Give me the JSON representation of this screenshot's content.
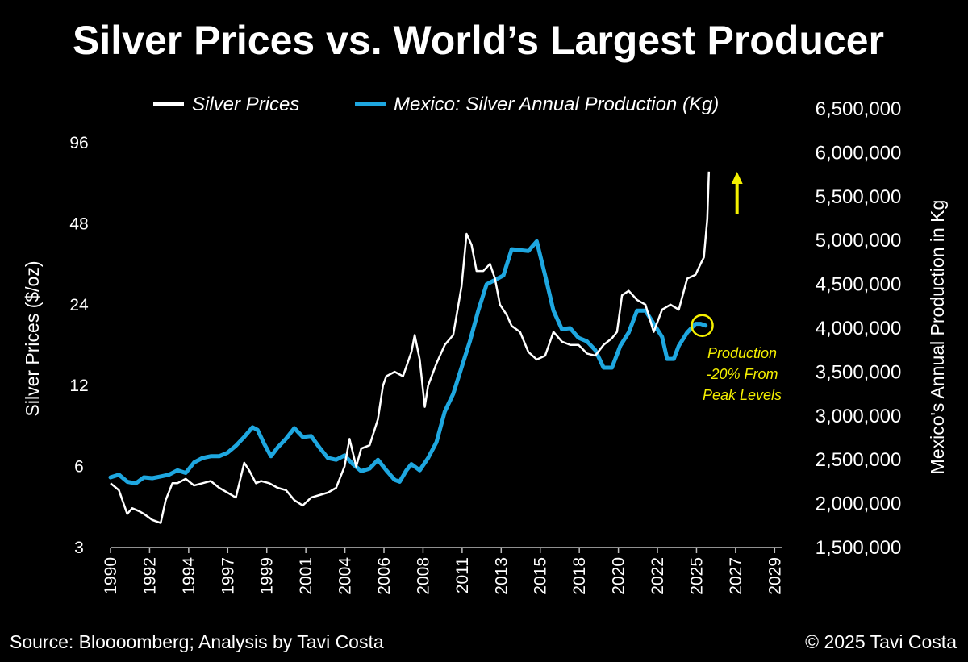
{
  "chart_data": {
    "type": "line",
    "title": "Silver Prices vs. World’s Largest Producer",
    "ylabel_left": "Silver Prices ($/oz)",
    "ylabel_right": "Mexico's Annual Production in Kg",
    "left_axis": {
      "scale": "log",
      "ylim": [
        3,
        96
      ],
      "ticks": [
        "96",
        "48",
        "24",
        "12",
        "6",
        "3"
      ],
      "tick_values": [
        96,
        48,
        24,
        12,
        6,
        3
      ]
    },
    "right_axis": {
      "scale": "linear",
      "ylim": [
        1500000,
        6500000
      ],
      "ticks": [
        "6,500,000",
        "6,000,000",
        "5,500,000",
        "5,000,000",
        "4,500,000",
        "4,000,000",
        "3,500,000",
        "3,000,000",
        "2,500,000",
        "2,000,000",
        "1,500,000"
      ],
      "tick_values": [
        6500000,
        6000000,
        5500000,
        5000000,
        4500000,
        4000000,
        3500000,
        3000000,
        2500000,
        2000000,
        1500000
      ]
    },
    "x_axis": {
      "xlim": [
        1990,
        2030.2
      ],
      "tick_labels": [
        "1990",
        "1992",
        "1994",
        "1997",
        "1999",
        "2001",
        "2004",
        "2006",
        "2008",
        "2011",
        "2013",
        "2015",
        "2018",
        "2020",
        "2022",
        "2025",
        "2027",
        "2029"
      ]
    },
    "legend_position": "top",
    "series": [
      {
        "name": "Silver Prices",
        "axis": "left",
        "color": "#ffffff",
        "x": [
          1990.0,
          1990.5,
          1991.0,
          1991.3,
          1991.7,
          1992.0,
          1992.5,
          1993.0,
          1993.3,
          1993.7,
          1994.0,
          1994.5,
          1995.0,
          1995.5,
          1996.0,
          1996.5,
          1997.0,
          1997.5,
          1998.0,
          1998.3,
          1998.7,
          1999.0,
          1999.5,
          2000.0,
          2000.5,
          2001.0,
          2001.5,
          2002.0,
          2002.5,
          2003.0,
          2003.5,
          2004.0,
          2004.3,
          2004.7,
          2005.0,
          2005.5,
          2006.0,
          2006.3,
          2006.5,
          2007.0,
          2007.5,
          2008.0,
          2008.2,
          2008.5,
          2008.8,
          2009.0,
          2009.5,
          2010.0,
          2010.5,
          2011.0,
          2011.3,
          2011.6,
          2011.9,
          2012.3,
          2012.7,
          2013.0,
          2013.3,
          2013.7,
          2014.0,
          2014.5,
          2015.0,
          2015.5,
          2016.0,
          2016.5,
          2017.0,
          2017.5,
          2018.0,
          2018.5,
          2019.0,
          2019.5,
          2020.0,
          2020.3,
          2020.6,
          2021.0,
          2021.5,
          2022.0,
          2022.5,
          2023.0,
          2023.5,
          2024.0,
          2024.5,
          2025.0,
          2025.3,
          2025.5,
          2025.7,
          2025.8
        ],
        "y": [
          5.2,
          4.9,
          4.0,
          4.2,
          4.1,
          4.0,
          3.8,
          3.7,
          4.5,
          5.2,
          5.2,
          5.4,
          5.1,
          5.2,
          5.3,
          5.0,
          4.8,
          4.6,
          6.2,
          5.8,
          5.2,
          5.3,
          5.2,
          5.0,
          4.9,
          4.5,
          4.3,
          4.6,
          4.7,
          4.8,
          5.0,
          6.0,
          7.6,
          6.0,
          7.0,
          7.2,
          9.0,
          12.0,
          13.0,
          13.5,
          13.0,
          16.0,
          18.5,
          15.0,
          10.0,
          12.0,
          14.5,
          17.0,
          18.5,
          28.0,
          44.0,
          40.0,
          32.0,
          32.0,
          34.0,
          30.0,
          24.0,
          22.0,
          20.0,
          19.0,
          16.0,
          15.0,
          15.5,
          19.0,
          17.5,
          17.0,
          17.0,
          15.8,
          15.5,
          17.0,
          18.0,
          19.0,
          26.0,
          27.0,
          25.0,
          24.0,
          19.0,
          23.0,
          24.0,
          23.0,
          30.0,
          31.0,
          34.0,
          36.0,
          50.0,
          75.0
        ]
      },
      {
        "name": "Mexico: Silver Annual Production (Kg)",
        "axis": "right",
        "color": "#1ea7e0",
        "x": [
          1990.0,
          1990.5,
          1991.0,
          1991.5,
          1992.0,
          1992.5,
          1993.0,
          1993.5,
          1994.0,
          1994.5,
          1995.0,
          1995.5,
          1996.0,
          1996.5,
          1997.0,
          1997.5,
          1998.0,
          1998.5,
          1998.8,
          1999.2,
          1999.6,
          2000.0,
          2000.5,
          2001.0,
          2001.5,
          2002.0,
          2002.5,
          2003.0,
          2003.5,
          2004.0,
          2004.5,
          2005.0,
          2005.5,
          2006.0,
          2006.5,
          2007.0,
          2007.3,
          2007.7,
          2008.0,
          2008.5,
          2009.0,
          2009.5,
          2010.0,
          2010.5,
          2011.0,
          2011.5,
          2012.0,
          2012.5,
          2013.0,
          2013.5,
          2014.0,
          2014.5,
          2015.0,
          2015.5,
          2016.0,
          2016.5,
          2017.0,
          2017.5,
          2018.0,
          2018.5,
          2019.0,
          2019.5,
          2020.0,
          2020.5,
          2021.0,
          2021.5,
          2022.0,
          2022.5,
          2023.0,
          2023.3,
          2023.7,
          2024.0,
          2024.5,
          2025.0,
          2025.3,
          2025.6
        ],
        "y": [
          2300000,
          2330000,
          2250000,
          2230000,
          2300000,
          2290000,
          2310000,
          2330000,
          2380000,
          2350000,
          2470000,
          2520000,
          2540000,
          2540000,
          2580000,
          2660000,
          2760000,
          2870000,
          2840000,
          2680000,
          2540000,
          2640000,
          2740000,
          2860000,
          2760000,
          2770000,
          2640000,
          2520000,
          2500000,
          2550000,
          2450000,
          2370000,
          2400000,
          2500000,
          2380000,
          2270000,
          2250000,
          2380000,
          2450000,
          2380000,
          2520000,
          2700000,
          3050000,
          3250000,
          3550000,
          3850000,
          4200000,
          4500000,
          4550000,
          4600000,
          4900000,
          4890000,
          4880000,
          4990000,
          4600000,
          4200000,
          3990000,
          4000000,
          3890000,
          3850000,
          3750000,
          3550000,
          3550000,
          3800000,
          3950000,
          4200000,
          4200000,
          4050000,
          3900000,
          3650000,
          3650000,
          3800000,
          3950000,
          4050000,
          4050000,
          4030000
        ]
      }
    ],
    "annotations": [
      {
        "text_lines": [
          "Production",
          "-20% From",
          "Peak Levels"
        ],
        "color": "#f5f000",
        "target": {
          "x": 2025.4,
          "y": 4030000
        }
      },
      {
        "text": "↑",
        "color": "#f5f000",
        "at_x": 2027.0
      }
    ]
  },
  "footer": {
    "source": "Source: Bloooomberg; Analysis by Tavi Costa",
    "copyright": "© 2025 Tavi Costa"
  },
  "colors": {
    "background": "#000000",
    "silver": "#ffffff",
    "production": "#1ea7e0",
    "annotation": "#f5f000"
  }
}
